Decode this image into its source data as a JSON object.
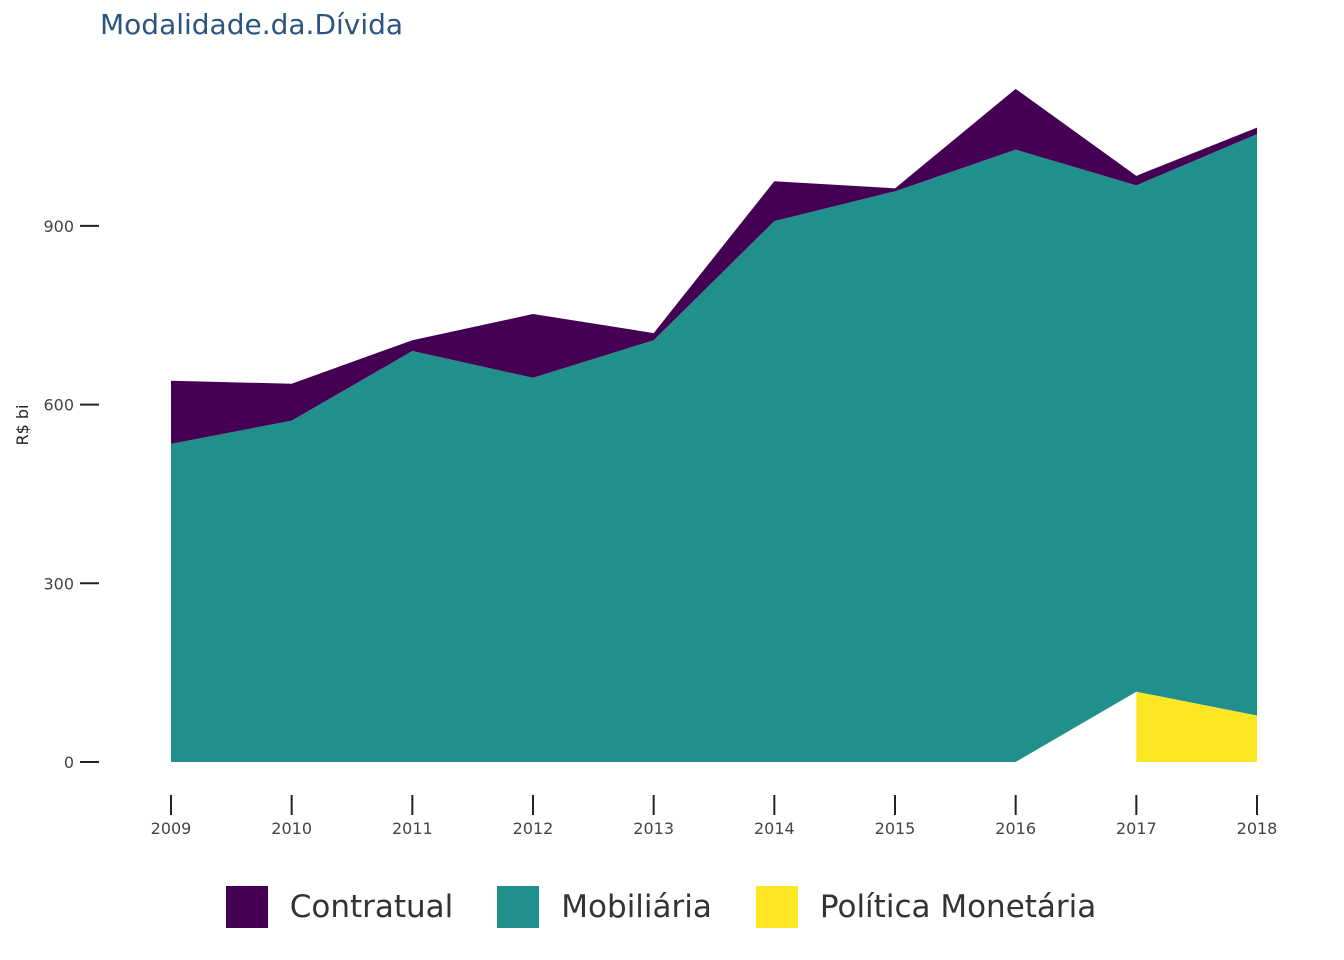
{
  "chart_data": {
    "type": "area",
    "stacked": true,
    "title": "Modalidade.da.Dívida",
    "xlabel": "",
    "ylabel": "R$ bi",
    "x": [
      "2009",
      "2010",
      "2011",
      "2012",
      "2013",
      "2014",
      "2015",
      "2016",
      "2017",
      "2018"
    ],
    "ylim": [
      0,
      1150
    ],
    "yticks": [
      0,
      300,
      600,
      900
    ],
    "series": [
      {
        "name": "Política Monetária",
        "color": "#fde725",
        "values": [
          0,
          0,
          0,
          0,
          0,
          0,
          0,
          0,
          118,
          78
        ]
      },
      {
        "name": "Mobiliária",
        "color": "#21908c",
        "values": [
          534,
          573,
          690,
          645,
          708,
          908,
          958,
          1028,
          850,
          976
        ]
      },
      {
        "name": "Contratual",
        "color": "#440154",
        "values": [
          106,
          62,
          18,
          107,
          12,
          67,
          5,
          102,
          16,
          11
        ]
      }
    ],
    "legend_order": [
      "Contratual",
      "Mobiliária",
      "Política Monetária"
    ],
    "legend_position": "bottom"
  }
}
